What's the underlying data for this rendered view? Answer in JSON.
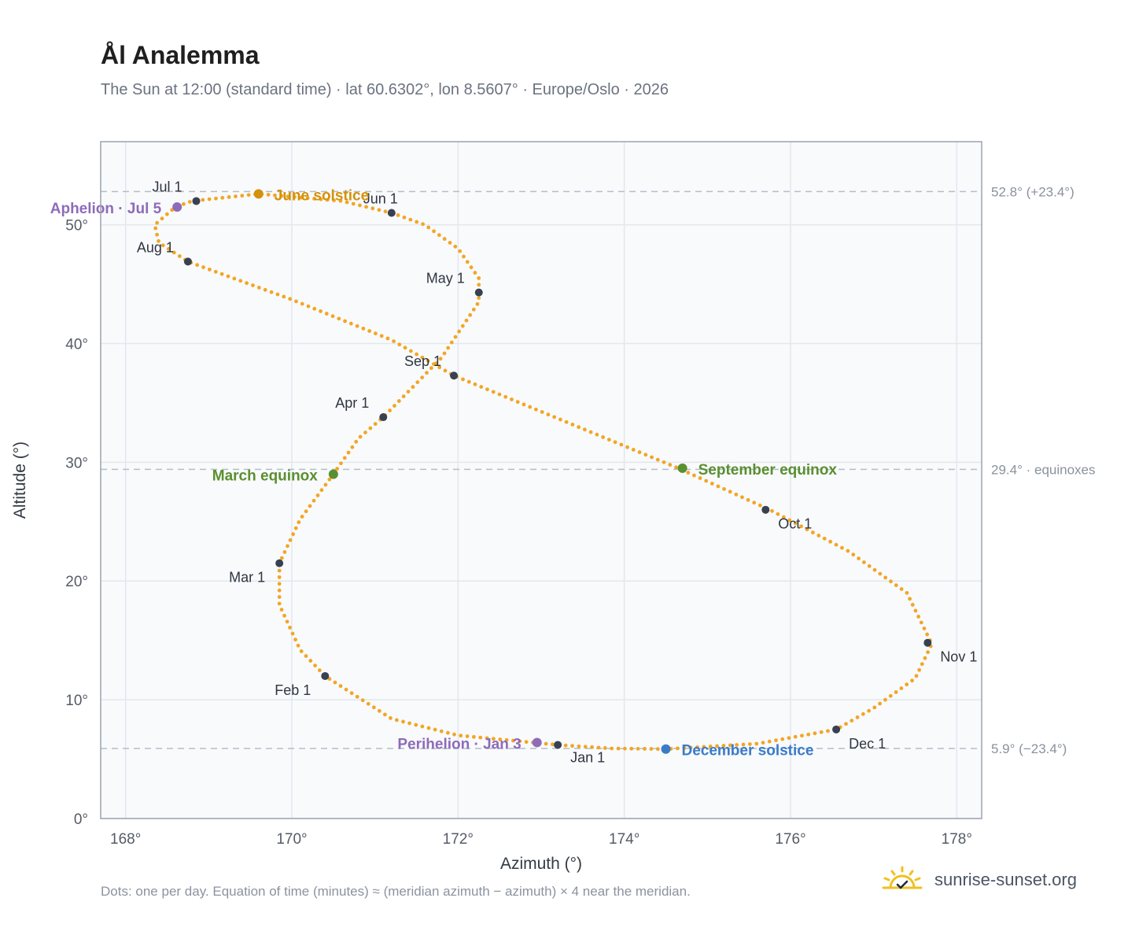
{
  "header": {
    "title": "Ål Analemma",
    "subtitle": "The Sun at 12:00 (standard time) · lat 60.6302°, lon 8.5607° · Europe/Oslo · 2026"
  },
  "footer": {
    "note": "Dots: one per day. Equation of time (minutes) ≈ (meridian azimuth − azimuth) × 4 near the meridian.",
    "brand": "sunrise-sunset.org"
  },
  "colors": {
    "path": "#f2a624",
    "month_dot": "#374151",
    "june_solstice": "#d4920a",
    "december_solstice": "#3a7bc8",
    "equinox": "#5a8f2f",
    "apsis": "#8e6bb8",
    "reference_line": "#b4bec8",
    "plot_bg": "#f8fafc",
    "grid": "#e3e8ee",
    "frame": "#9aa4b0",
    "logo": "#f0c020"
  },
  "icons": {
    "logo": "sun-check-icon"
  },
  "chart_data": {
    "type": "scatter",
    "title": "Ål Analemma",
    "xlabel": "Azimuth (°)",
    "ylabel": "Altitude (°)",
    "xlim": [
      167.7,
      178.3
    ],
    "ylim": [
      0,
      57
    ],
    "x_ticks": [
      168,
      170,
      172,
      174,
      176,
      178
    ],
    "x_tick_labels": [
      "168°",
      "170°",
      "172°",
      "174°",
      "176°",
      "178°"
    ],
    "y_ticks": [
      0,
      10,
      20,
      30,
      40,
      50
    ],
    "y_tick_labels": [
      "0°",
      "10°",
      "20°",
      "30°",
      "40°",
      "50°"
    ],
    "grid": true,
    "reference_lines": [
      {
        "y": 52.8,
        "label": "52.8° (+23.4°)"
      },
      {
        "y": 29.4,
        "label": "29.4° · equinoxes"
      },
      {
        "y": 5.9,
        "label": "5.9° (−23.4°)"
      }
    ],
    "path": [
      [
        172.9,
        6.4
      ],
      [
        172.0,
        7.0
      ],
      [
        171.2,
        8.4
      ],
      [
        170.4,
        12.0
      ],
      [
        170.1,
        14.2
      ],
      [
        169.85,
        18.0
      ],
      [
        169.85,
        21.5
      ],
      [
        170.1,
        25.2
      ],
      [
        170.5,
        29.0
      ],
      [
        170.8,
        32.0
      ],
      [
        171.1,
        33.8
      ],
      [
        171.8,
        38.8
      ],
      [
        172.25,
        43.5
      ],
      [
        172.25,
        45.5
      ],
      [
        172.0,
        48.0
      ],
      [
        171.6,
        50.0
      ],
      [
        171.2,
        51.0
      ],
      [
        170.6,
        52.0
      ],
      [
        169.6,
        52.6
      ],
      [
        168.8,
        52.0
      ],
      [
        168.6,
        51.5
      ],
      [
        168.35,
        50.0
      ],
      [
        168.4,
        48.5
      ],
      [
        168.75,
        46.9
      ],
      [
        170.0,
        43.7
      ],
      [
        171.2,
        40.3
      ],
      [
        171.95,
        37.3
      ],
      [
        173.3,
        33.4
      ],
      [
        174.65,
        29.5
      ],
      [
        175.75,
        26.0
      ],
      [
        176.7,
        22.5
      ],
      [
        177.4,
        19.0
      ],
      [
        177.7,
        14.7
      ],
      [
        177.5,
        11.8
      ],
      [
        177.0,
        9.3
      ],
      [
        176.55,
        7.5
      ],
      [
        175.6,
        6.3
      ],
      [
        174.5,
        5.85
      ],
      [
        173.85,
        5.9
      ],
      [
        173.2,
        6.2
      ],
      [
        172.9,
        6.4
      ]
    ],
    "month_points": [
      {
        "label": "Jan 1",
        "x": 173.2,
        "y": 6.2
      },
      {
        "label": "Feb 1",
        "x": 170.4,
        "y": 12.0
      },
      {
        "label": "Mar 1",
        "x": 169.85,
        "y": 21.5
      },
      {
        "label": "Apr 1",
        "x": 171.1,
        "y": 33.8
      },
      {
        "label": "May 1",
        "x": 172.25,
        "y": 44.3
      },
      {
        "label": "Jun 1",
        "x": 171.2,
        "y": 51.0
      },
      {
        "label": "Jul 1",
        "x": 168.85,
        "y": 52.0
      },
      {
        "label": "Aug 1",
        "x": 168.75,
        "y": 46.9
      },
      {
        "label": "Sep 1",
        "x": 171.95,
        "y": 37.3
      },
      {
        "label": "Oct 1",
        "x": 175.7,
        "y": 26.0
      },
      {
        "label": "Nov 1",
        "x": 177.65,
        "y": 14.8
      },
      {
        "label": "Dec 1",
        "x": 176.55,
        "y": 7.5
      }
    ],
    "events": [
      {
        "label": "June solstice",
        "x": 169.6,
        "y": 52.6,
        "color": "#d4920a"
      },
      {
        "label": "Aphelion · Jul 5",
        "x": 168.62,
        "y": 51.5,
        "color": "#8e6bb8"
      },
      {
        "label": "March equinox",
        "x": 170.5,
        "y": 29.0,
        "color": "#5a8f2f"
      },
      {
        "label": "September equinox",
        "x": 174.7,
        "y": 29.5,
        "color": "#5a8f2f"
      },
      {
        "label": "Perihelion · Jan 3",
        "x": 172.95,
        "y": 6.4,
        "color": "#8e6bb8"
      },
      {
        "label": "December solstice",
        "x": 174.5,
        "y": 5.85,
        "color": "#3a7bc8"
      }
    ]
  }
}
